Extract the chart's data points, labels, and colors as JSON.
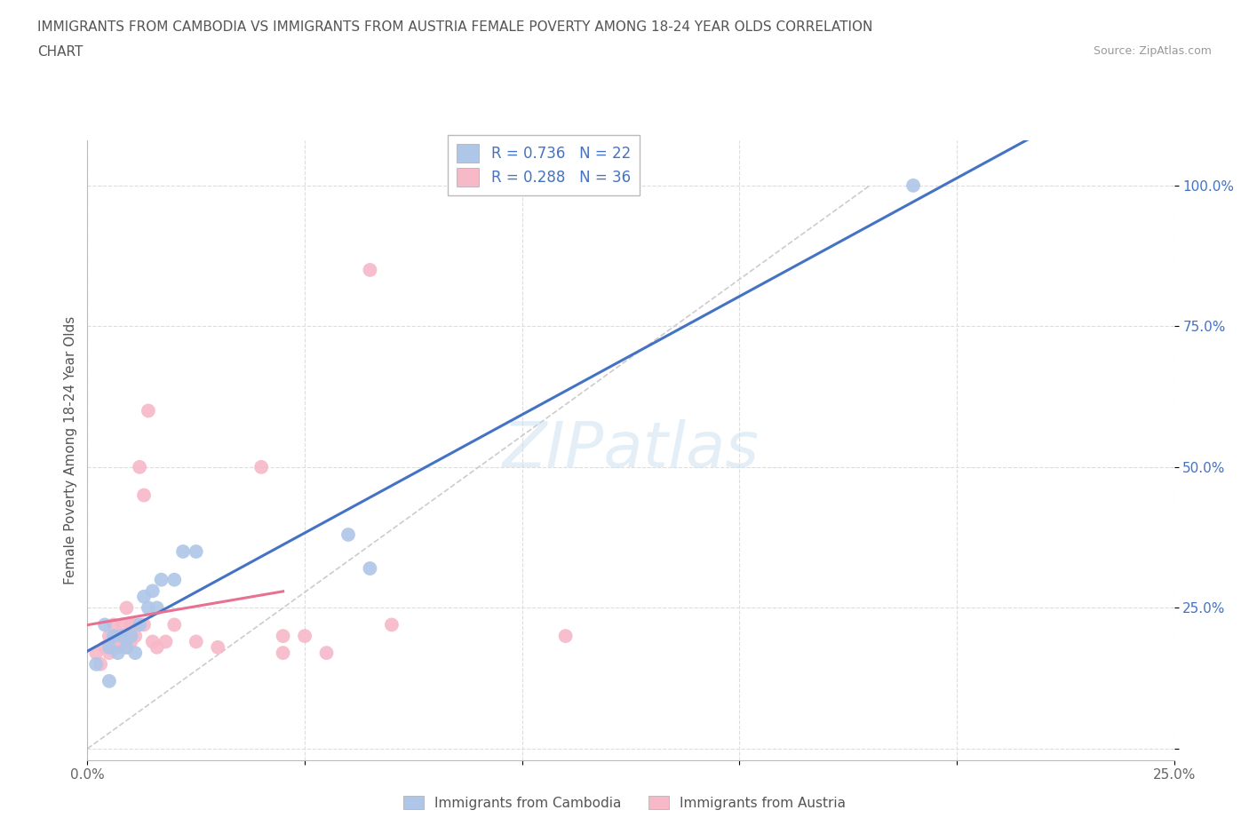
{
  "title_line1": "IMMIGRANTS FROM CAMBODIA VS IMMIGRANTS FROM AUSTRIA FEMALE POVERTY AMONG 18-24 YEAR OLDS CORRELATION",
  "title_line2": "CHART",
  "source": "Source: ZipAtlas.com",
  "ylabel": "Female Poverty Among 18-24 Year Olds",
  "xlim": [
    0.0,
    0.25
  ],
  "ylim": [
    -0.02,
    1.08
  ],
  "x_ticks": [
    0.0,
    0.05,
    0.1,
    0.15,
    0.2,
    0.25
  ],
  "x_tick_labels": [
    "0.0%",
    "",
    "",
    "",
    "",
    "25.0%"
  ],
  "y_ticks": [
    0.0,
    0.25,
    0.5,
    0.75,
    1.0
  ],
  "y_tick_labels": [
    "",
    "25.0%",
    "50.0%",
    "75.0%",
    "100.0%"
  ],
  "watermark": "ZIPatlas",
  "legend_r1": "R = 0.736",
  "legend_n1": "N = 22",
  "legend_r2": "R = 0.288",
  "legend_n2": "N = 36",
  "cambodia_color": "#aec6e8",
  "austria_color": "#f7b8c8",
  "line_cambodia": "#4472c4",
  "line_austria": "#e87090",
  "cambodia_x": [
    0.002,
    0.004,
    0.005,
    0.005,
    0.006,
    0.007,
    0.008,
    0.009,
    0.01,
    0.011,
    0.012,
    0.013,
    0.014,
    0.015,
    0.016,
    0.017,
    0.02,
    0.022,
    0.025,
    0.06,
    0.065,
    0.19
  ],
  "cambodia_y": [
    0.15,
    0.22,
    0.18,
    0.12,
    0.2,
    0.17,
    0.2,
    0.18,
    0.2,
    0.17,
    0.22,
    0.27,
    0.25,
    0.28,
    0.25,
    0.3,
    0.3,
    0.35,
    0.35,
    0.38,
    0.32,
    1.0
  ],
  "austria_x": [
    0.002,
    0.003,
    0.004,
    0.005,
    0.005,
    0.006,
    0.006,
    0.007,
    0.007,
    0.008,
    0.008,
    0.009,
    0.009,
    0.01,
    0.01,
    0.01,
    0.011,
    0.011,
    0.012,
    0.013,
    0.013,
    0.014,
    0.015,
    0.016,
    0.018,
    0.02,
    0.025,
    0.03,
    0.04,
    0.045,
    0.045,
    0.05,
    0.055,
    0.065,
    0.07,
    0.11
  ],
  "austria_y": [
    0.17,
    0.15,
    0.18,
    0.17,
    0.2,
    0.18,
    0.22,
    0.18,
    0.2,
    0.19,
    0.22,
    0.18,
    0.25,
    0.2,
    0.22,
    0.19,
    0.2,
    0.22,
    0.5,
    0.45,
    0.22,
    0.6,
    0.19,
    0.18,
    0.19,
    0.22,
    0.19,
    0.18,
    0.5,
    0.2,
    0.17,
    0.2,
    0.17,
    0.85,
    0.22,
    0.2
  ],
  "background_color": "#ffffff",
  "grid_color": "#dddddd"
}
